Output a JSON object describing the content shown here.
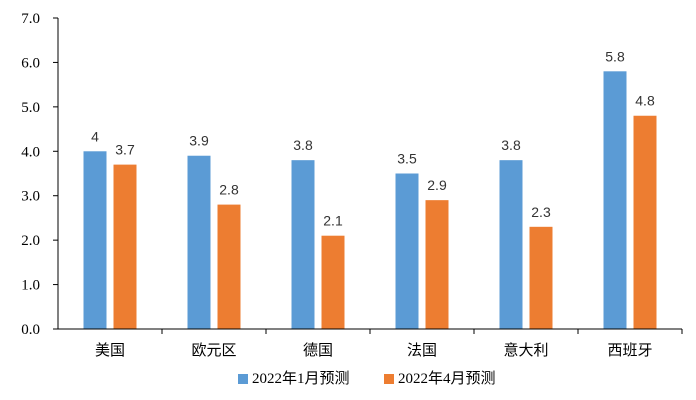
{
  "chart_data": {
    "type": "bar",
    "categories": [
      "美国",
      "欧元区",
      "德国",
      "法国",
      "意大利",
      "西班牙"
    ],
    "series": [
      {
        "name": "2022年1月预测",
        "color": "#5B9BD5",
        "values": [
          4,
          3.9,
          3.8,
          3.5,
          3.8,
          5.8
        ],
        "labels": [
          "4",
          "3.9",
          "3.8",
          "3.5",
          "3.8",
          "5.8"
        ]
      },
      {
        "name": "2022年4月预测",
        "color": "#ED7D31",
        "values": [
          3.7,
          2.8,
          2.1,
          2.9,
          2.3,
          4.8
        ],
        "labels": [
          "3.7",
          "2.8",
          "2.1",
          "2.9",
          "2.3",
          "4.8"
        ]
      }
    ],
    "ylim": [
      0,
      7
    ],
    "yticks": [
      "0.0",
      "1.0",
      "2.0",
      "3.0",
      "4.0",
      "5.0",
      "6.0",
      "7.0"
    ],
    "legend_position": "bottom",
    "grid": false
  }
}
